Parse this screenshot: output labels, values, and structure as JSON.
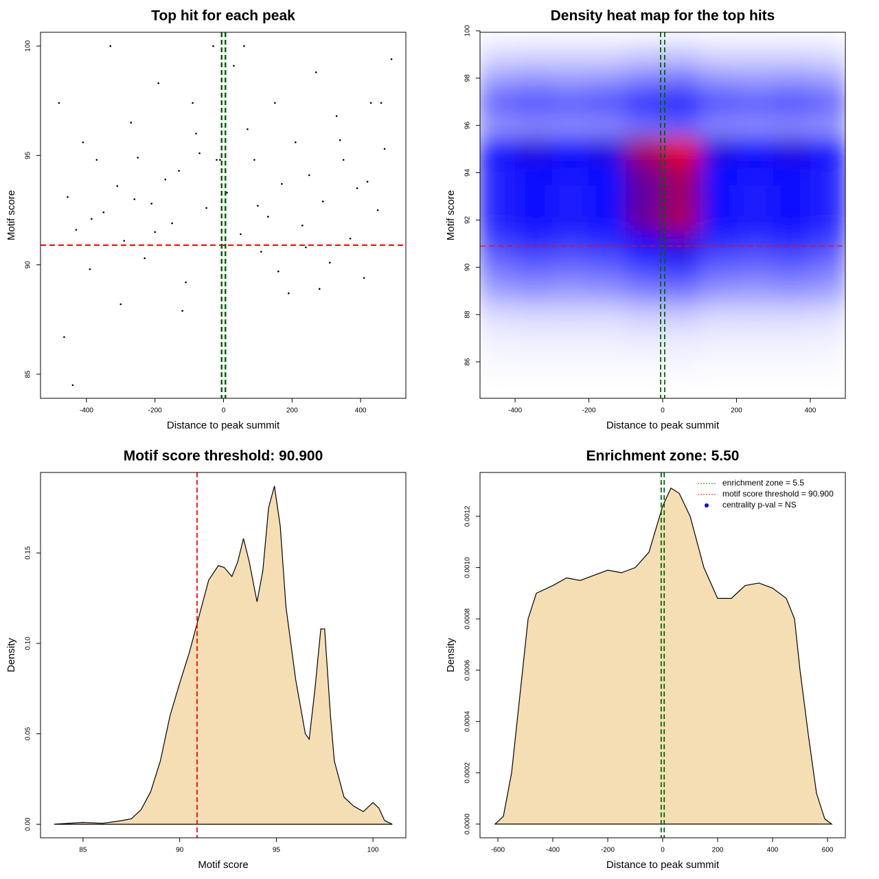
{
  "chart_data": [
    {
      "type": "scatter",
      "title": "Top hit for each peak",
      "xlabel": "Distance to peak summit",
      "ylabel": "Motif score",
      "x": [
        -480,
        -455,
        -430,
        -410,
        -390,
        -370,
        -350,
        -330,
        -310,
        -290,
        -270,
        -250,
        -230,
        -210,
        -190,
        -170,
        -150,
        -130,
        -110,
        -90,
        -70,
        -50,
        -30,
        -10,
        10,
        30,
        50,
        70,
        90,
        110,
        130,
        150,
        170,
        190,
        210,
        230,
        250,
        270,
        290,
        310,
        330,
        350,
        370,
        390,
        410,
        430,
        450,
        470,
        490,
        -465,
        -300,
        -120,
        60,
        240,
        420,
        -385,
        -200,
        -20,
        160,
        340,
        -440,
        -260,
        -80,
        100,
        280,
        460
      ],
      "values": [
        97.4,
        93.1,
        91.6,
        95.6,
        89.8,
        94.8,
        92.4,
        100,
        93.6,
        91.1,
        96.5,
        94.9,
        90.3,
        92.8,
        98.3,
        93.9,
        91.9,
        94.3,
        89.2,
        97.4,
        95.1,
        92.6,
        100,
        94.8,
        93.3,
        99.1,
        91.4,
        96.2,
        94.8,
        90.6,
        92.2,
        97.4,
        93.7,
        88.7,
        95.6,
        91.8,
        94.1,
        98.8,
        92.9,
        90.1,
        96.8,
        94.8,
        91.2,
        93.5,
        89.4,
        97.4,
        92.5,
        95.3,
        99.4,
        86.7,
        88.2,
        87.9,
        100,
        90.8,
        93.8,
        92.1,
        91.5,
        94.8,
        89.7,
        95.7,
        84.5,
        93.0,
        96.0,
        92.7,
        88.9,
        97.4
      ],
      "color": "#000000",
      "xlim": [
        -534,
        532
      ],
      "ylim": [
        83.9,
        100.63
      ],
      "xticks": [
        -400,
        -200,
        0,
        200,
        400
      ],
      "yticks": [
        85,
        90,
        95,
        100
      ],
      "hlines": [
        90.9
      ],
      "hline_color": "#ff0000",
      "vlines": [
        -5.5,
        5.5
      ],
      "vline_color": "#006400"
    },
    {
      "type": "heatmap",
      "title": "Density heat map for the top hits",
      "xlabel": "Distance to peak summit",
      "ylabel": "Motif score",
      "x": [
        -450,
        -350,
        -250,
        -150,
        -50,
        50,
        150,
        250,
        350,
        450
      ],
      "y": [
        86,
        87,
        88,
        89,
        90,
        91,
        92,
        93,
        94,
        95,
        96,
        97,
        98,
        99
      ],
      "z": [
        [
          0.02,
          0.02,
          0.02,
          0.02,
          0.02,
          0.03,
          0.02,
          0.02,
          0.02,
          0.02
        ],
        [
          0.04,
          0.05,
          0.05,
          0.05,
          0.06,
          0.06,
          0.05,
          0.05,
          0.05,
          0.04
        ],
        [
          0.1,
          0.11,
          0.11,
          0.11,
          0.14,
          0.15,
          0.11,
          0.11,
          0.11,
          0.1
        ],
        [
          0.26,
          0.29,
          0.27,
          0.29,
          0.35,
          0.38,
          0.29,
          0.27,
          0.29,
          0.26
        ],
        [
          0.38,
          0.43,
          0.41,
          0.43,
          0.52,
          0.56,
          0.43,
          0.41,
          0.43,
          0.38
        ],
        [
          0.51,
          0.57,
          0.54,
          0.57,
          0.69,
          0.75,
          0.57,
          0.54,
          0.57,
          0.51
        ],
        [
          0.61,
          0.68,
          0.65,
          0.68,
          0.83,
          0.9,
          0.68,
          0.65,
          0.68,
          0.61
        ],
        [
          0.6,
          0.67,
          0.63,
          0.67,
          0.81,
          0.88,
          0.67,
          0.63,
          0.67,
          0.6
        ],
        [
          0.61,
          0.68,
          0.65,
          0.68,
          0.83,
          0.9,
          0.68,
          0.65,
          0.68,
          0.61
        ],
        [
          0.66,
          0.74,
          0.7,
          0.74,
          0.9,
          0.98,
          0.74,
          0.7,
          0.74,
          0.66
        ],
        [
          0.3,
          0.33,
          0.32,
          0.33,
          0.4,
          0.44,
          0.33,
          0.32,
          0.33,
          0.3
        ],
        [
          0.43,
          0.48,
          0.45,
          0.48,
          0.58,
          0.63,
          0.48,
          0.45,
          0.48,
          0.43
        ],
        [
          0.26,
          0.29,
          0.27,
          0.29,
          0.35,
          0.38,
          0.29,
          0.27,
          0.29,
          0.26
        ],
        [
          0.1,
          0.11,
          0.11,
          0.11,
          0.14,
          0.15,
          0.11,
          0.11,
          0.11,
          0.1
        ]
      ],
      "colors": [
        "#ffffff",
        "#0000ff",
        "#ff0000"
      ],
      "xlim": [
        -495,
        495
      ],
      "ylim": [
        84.46,
        99.94
      ],
      "xticks": [
        -400,
        -200,
        0,
        200,
        400
      ],
      "yticks": [
        86,
        88,
        90,
        92,
        94,
        96,
        98,
        100
      ],
      "hlines": [
        90.9
      ],
      "hline_color": "#ff0000",
      "vlines": [
        -5.5,
        5.5
      ],
      "vline_color": "#006400"
    },
    {
      "type": "area",
      "title": "Motif score threshold: 90.900",
      "xlabel": "Motif score",
      "ylabel": "Density",
      "x": [
        83.5,
        85,
        86,
        87,
        87.5,
        88,
        88.5,
        89,
        89.5,
        90,
        90.5,
        91,
        91.5,
        92,
        92.3,
        92.7,
        93,
        93.3,
        93.6,
        94,
        94.3,
        94.6,
        94.9,
        95.2,
        95.5,
        96,
        96.5,
        96.7,
        97,
        97.3,
        97.5,
        97.8,
        98,
        98.5,
        99,
        99.5,
        100,
        100.3,
        100.6,
        101
      ],
      "values": [
        0,
        0.001,
        0.0005,
        0.002,
        0.003,
        0.008,
        0.018,
        0.035,
        0.06,
        0.078,
        0.095,
        0.115,
        0.135,
        0.143,
        0.142,
        0.137,
        0.145,
        0.158,
        0.145,
        0.123,
        0.14,
        0.175,
        0.187,
        0.165,
        0.12,
        0.08,
        0.05,
        0.047,
        0.075,
        0.108,
        0.108,
        0.06,
        0.035,
        0.015,
        0.01,
        0.007,
        0.012,
        0.009,
        0.002,
        0
      ],
      "color": "#f5deb3",
      "xlim": [
        82.8,
        101.7
      ],
      "ylim": [
        -0.0075,
        0.1945
      ],
      "xticks": [
        85,
        90,
        95,
        100
      ],
      "yticks": [
        {
          "value": 0,
          "label": "0.00"
        },
        {
          "value": 0.05,
          "label": "0.05"
        },
        {
          "value": 0.1,
          "label": "0.10"
        },
        {
          "value": 0.15,
          "label": "0.15"
        }
      ],
      "vlines": [
        90.9
      ],
      "vline_color": "#ff0000"
    },
    {
      "type": "area",
      "title": "Enrichment zone: 5.50",
      "xlabel": "Distance to peak summit",
      "ylabel": "Density",
      "x": [
        -610,
        -580,
        -550,
        -520,
        -490,
        -460,
        -400,
        -350,
        -300,
        -250,
        -200,
        -150,
        -100,
        -50,
        0,
        30,
        60,
        100,
        150,
        200,
        250,
        300,
        350,
        400,
        450,
        480,
        500,
        530,
        560,
        590,
        615
      ],
      "values": [
        0,
        3e-05,
        0.0002,
        0.0005,
        0.0008,
        0.0009,
        0.00093,
        0.00096,
        0.00095,
        0.00097,
        0.00099,
        0.00098,
        0.001,
        0.00106,
        0.00124,
        0.00131,
        0.00129,
        0.0012,
        0.001,
        0.00088,
        0.00088,
        0.00093,
        0.00094,
        0.00092,
        0.00088,
        0.0008,
        0.0006,
        0.00035,
        0.00012,
        2e-05,
        0
      ],
      "color": "#f5deb3",
      "xlim": [
        -665,
        665
      ],
      "ylim": [
        -5.36e-05,
        0.001371
      ],
      "xticks": [
        -600,
        -400,
        -200,
        0,
        200,
        400,
        600
      ],
      "yticks": [
        {
          "value": 0,
          "label": "0.0000"
        },
        {
          "value": 0.0002,
          "label": "0.0002"
        },
        {
          "value": 0.0004,
          "label": "0.0004"
        },
        {
          "value": 0.0006,
          "label": "0.0006"
        },
        {
          "value": 0.0008,
          "label": "0.0008"
        },
        {
          "value": 0.001,
          "label": "0.0010"
        },
        {
          "value": 0.0012,
          "label": "0.0012"
        }
      ],
      "vlines": [
        -5.5,
        5.5
      ],
      "vline_color": "#006400",
      "legend_position": "top-right",
      "legend": [
        {
          "label": "enrichment zone = 5.5",
          "color": "#008000",
          "marker": "line"
        },
        {
          "label": "motif score threshold = 90.900",
          "color": "#ff0000",
          "marker": "line"
        },
        {
          "label": "centrality p-val = NS",
          "color": "#0000ff",
          "marker": "point"
        }
      ]
    }
  ]
}
